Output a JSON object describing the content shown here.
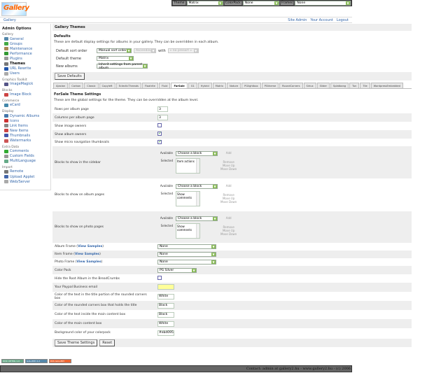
{
  "topbar": {
    "theme_label": "Theme",
    "theme_value": "Matrix",
    "colorpack_label": "ColorPack",
    "colorpack_value": "None",
    "frames_label": "Frames",
    "frames_value": "None"
  },
  "logo": "Gallery",
  "nav": {
    "breadcrumb": "Gallery",
    "links": [
      "Site Admin",
      "Your Account",
      "Logout"
    ]
  },
  "sidebar": {
    "title": "Admin Options",
    "groups": [
      {
        "label": "Gallery",
        "items": [
          {
            "label": "General",
            "color": "#58a"
          },
          {
            "label": "Groups",
            "color": "#4a4"
          },
          {
            "label": "Maintenance",
            "color": "#a85"
          },
          {
            "label": "Performance",
            "color": "#393"
          },
          {
            "label": "Plugins",
            "color": "#999"
          },
          {
            "label": "Themes",
            "color": "#777",
            "current": true
          },
          {
            "label": "URL Rewrite",
            "color": "#25a"
          },
          {
            "label": "Users",
            "color": "#aaa"
          }
        ]
      },
      {
        "label": "Graphics Toolkit",
        "items": [
          {
            "label": "ImageMagick",
            "color": "#558"
          }
        ]
      },
      {
        "label": "Blocks",
        "items": [
          {
            "label": "Image Block",
            "color": "#c44"
          }
        ]
      },
      {
        "label": "Commerce",
        "items": [
          {
            "label": "eCard",
            "color": "#48a"
          }
        ]
      },
      {
        "label": "Display",
        "items": [
          {
            "label": "Dynamic Albums",
            "color": "#47a"
          },
          {
            "label": "Icons",
            "color": "#c33"
          },
          {
            "label": "Link Items",
            "color": "#888"
          },
          {
            "label": "New Items",
            "color": "#c44"
          },
          {
            "label": "Thumbnails",
            "color": "#45a"
          },
          {
            "label": "Watermarks",
            "color": "#c55"
          }
        ]
      },
      {
        "label": "Extra Data",
        "items": [
          {
            "label": "Comments",
            "color": "#3a3"
          },
          {
            "label": "Custom Fields",
            "color": "#999"
          },
          {
            "label": "MultiLanguage",
            "color": "#6a8"
          }
        ]
      },
      {
        "label": "Import",
        "items": [
          {
            "label": "Remote",
            "color": "#777"
          },
          {
            "label": "Upload Applet",
            "color": "#46a"
          },
          {
            "label": "Web/Server",
            "color": "#aaa"
          }
        ]
      }
    ]
  },
  "main": {
    "title": "Gallery Themes",
    "defaults": {
      "heading": "Defaults",
      "description": "These are default display settings for albums in your gallery. They can be overridden in each album.",
      "sort_label": "Default sort order",
      "sort_value": "Manual sort order",
      "direction_value": "Ascending",
      "with_label": "with",
      "preset_value": "« no presort »",
      "theme_label": "Default theme",
      "theme_value": "Matrix",
      "new_albums_label": "New albums",
      "new_albums_value": "Inherit settings from parent album",
      "save_button": "Save Defaults"
    },
    "tabs": [
      "Ajaxian",
      "Carbon",
      "Classic",
      "Copyleft",
      "EclecticThreads",
      "Floatrite",
      "Fluid",
      "ForSale",
      "G1",
      "Hybrid",
      "Matrix",
      "Nature",
      "PGlightbox",
      "PGtheme",
      "RoundCorners",
      "Siriux",
      "Slider",
      "Splatbang",
      "Tun",
      "Tile",
      "WordpressEmbedded"
    ],
    "active_tab": "ForSale",
    "theme_settings": {
      "heading": "ForSale Theme Settings",
      "description": "These are the global settings for the theme. They can be overridden at the album level.",
      "rows_label": "Rows per album page",
      "rows_value": "3",
      "cols_label": "Columns per album page",
      "cols_value": "3",
      "image_owners_label": "Show image owners",
      "image_owners": false,
      "album_owners_label": "Show album owners",
      "album_owners": true,
      "micro_nav_label": "Show micro navigation thumbnails",
      "micro_nav": true,
      "blocks": [
        {
          "label": "Blocks to show in the sidebar",
          "available_label": "Available",
          "available_value": "Choose a block",
          "selected_label": "Selected",
          "selected_value": "Item actions",
          "add": "Add",
          "remove": "Remove",
          "move_up": "Move Up",
          "move_down": "Move Down"
        },
        {
          "label": "Blocks to show on album pages",
          "available_label": "Available",
          "available_value": "Choose a block",
          "selected_label": "Selected",
          "selected_value": "Show comments",
          "add": "Add",
          "remove": "Remove",
          "move_up": "Move Up",
          "move_down": "Move Down"
        },
        {
          "label": "Blocks to show on photo pages",
          "available_label": "Available",
          "available_value": "Choose a block",
          "selected_label": "Selected",
          "selected_value": "Show comments",
          "add": "Add",
          "remove": "Remove",
          "move_up": "Move Up",
          "move_down": "Move Down"
        }
      ],
      "view_samples": "View Samples",
      "album_frame_label": "Album Frame",
      "album_frame_value": "None",
      "item_frame_label": "Item Frame",
      "item_frame_value": "None",
      "photo_frame_label": "Photo Frame",
      "photo_frame_value": "None",
      "color_pack_label": "Color Pack",
      "color_pack_value": "PG Silver",
      "hide_root_label": "Hide the Root Album in the BreadCrumbs",
      "hide_root": false,
      "paypal_label": "Your Paypal Business email",
      "paypal_value": "",
      "title_text_label": "Color of the text in the title portion of the rounded corners box",
      "title_text_value": "White",
      "rounded_box_label": "Color of the rounded corners box that holds the title",
      "rounded_box_value": "Black",
      "content_text_label": "Color of the text inside the main content box",
      "content_text_value": "Black",
      "content_box_label": "Color of the main content box",
      "content_box_value": "White",
      "bg_label": "Background color of your colorpack",
      "bg_value": "#ebd095",
      "save_button": "Save Theme Settings",
      "reset_button": "Reset"
    }
  },
  "badges": [
    "W3C XHTML 1.0",
    "GALLERY 2.2",
    "RSS GALLERY"
  ],
  "footer": "Contact: admin at gallery2.hu - www.gallery2.hu - (c) 2006"
}
